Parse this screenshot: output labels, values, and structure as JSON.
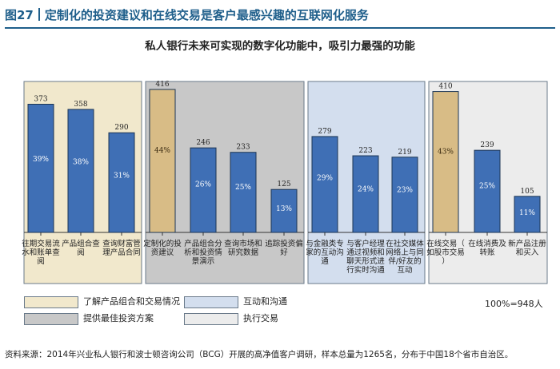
{
  "header": {
    "figure_label": "图27",
    "title": "定制化的投资建议和在线交易是客户最感兴趣的互联网化服务"
  },
  "chart_data": {
    "type": "bar",
    "title": "私人银行未来可实现的数字化功能中，吸引力最强的功能",
    "groups": [
      {
        "name": "了解产品组合和交易情况",
        "color": "#f1e8cc",
        "bar_color": "#3f6fb5",
        "bars": [
          {
            "label": "往期交易流水和账单查阅",
            "value": 373,
            "percent": "39%"
          },
          {
            "label": "产品组合查阅",
            "value": 358,
            "percent": "38%"
          },
          {
            "label": "查询财富管理产品合同",
            "value": 290,
            "percent": "31%"
          }
        ]
      },
      {
        "name": "提供最佳投资方案",
        "color": "#c8c8c8",
        "bar_color": "#3f6fb5",
        "bars": [
          {
            "label": "定制化的投资建议",
            "value": 416,
            "percent": "44%",
            "highlight": true
          },
          {
            "label": "产品组合分析和投资情景演示",
            "value": 246,
            "percent": "26%"
          },
          {
            "label": "查询市场和研究数据",
            "value": 233,
            "percent": "25%"
          },
          {
            "label": "追踪投资偏好",
            "value": 125,
            "percent": "13%"
          }
        ]
      },
      {
        "name": "互动和沟通",
        "color": "#d3deee",
        "bar_color": "#3f6fb5",
        "bars": [
          {
            "label": "与金融类专家的互动沟通",
            "value": 279,
            "percent": "29%"
          },
          {
            "label": "与客户经理通过视频和聊天形式进行实时沟通",
            "value": 223,
            "percent": "24%"
          },
          {
            "label": "在社交媒体网络上与同伴/好友的互动",
            "value": 219,
            "percent": "23%"
          }
        ]
      },
      {
        "name": "执行交易",
        "color": "#ececec",
        "bar_color": "#3f6fb5",
        "bars": [
          {
            "label": "在线交易（如股市交易）",
            "value": 410,
            "percent": "43%",
            "highlight": true
          },
          {
            "label": "在线消费及转账",
            "value": 239,
            "percent": "25%"
          },
          {
            "label": "新产品注册和买入",
            "value": 105,
            "percent": "11%"
          }
        ]
      }
    ],
    "highlight_color": "#d8bc86",
    "total_note": "100%=948人"
  },
  "legend": [
    {
      "label": "了解产品组合和交易情况",
      "color": "#f1e8cc"
    },
    {
      "label": "互动和沟通",
      "color": "#d3deee"
    },
    {
      "label": "提供最佳投资方案",
      "color": "#c8c8c8"
    },
    {
      "label": "执行交易",
      "color": "#ececec"
    }
  ],
  "source": "资料来源：2014年兴业私人银行和波士顿咨询公司（BCG）开展的高净值客户调研，样本总量为1265名，分布于中国18个省市自治区。"
}
